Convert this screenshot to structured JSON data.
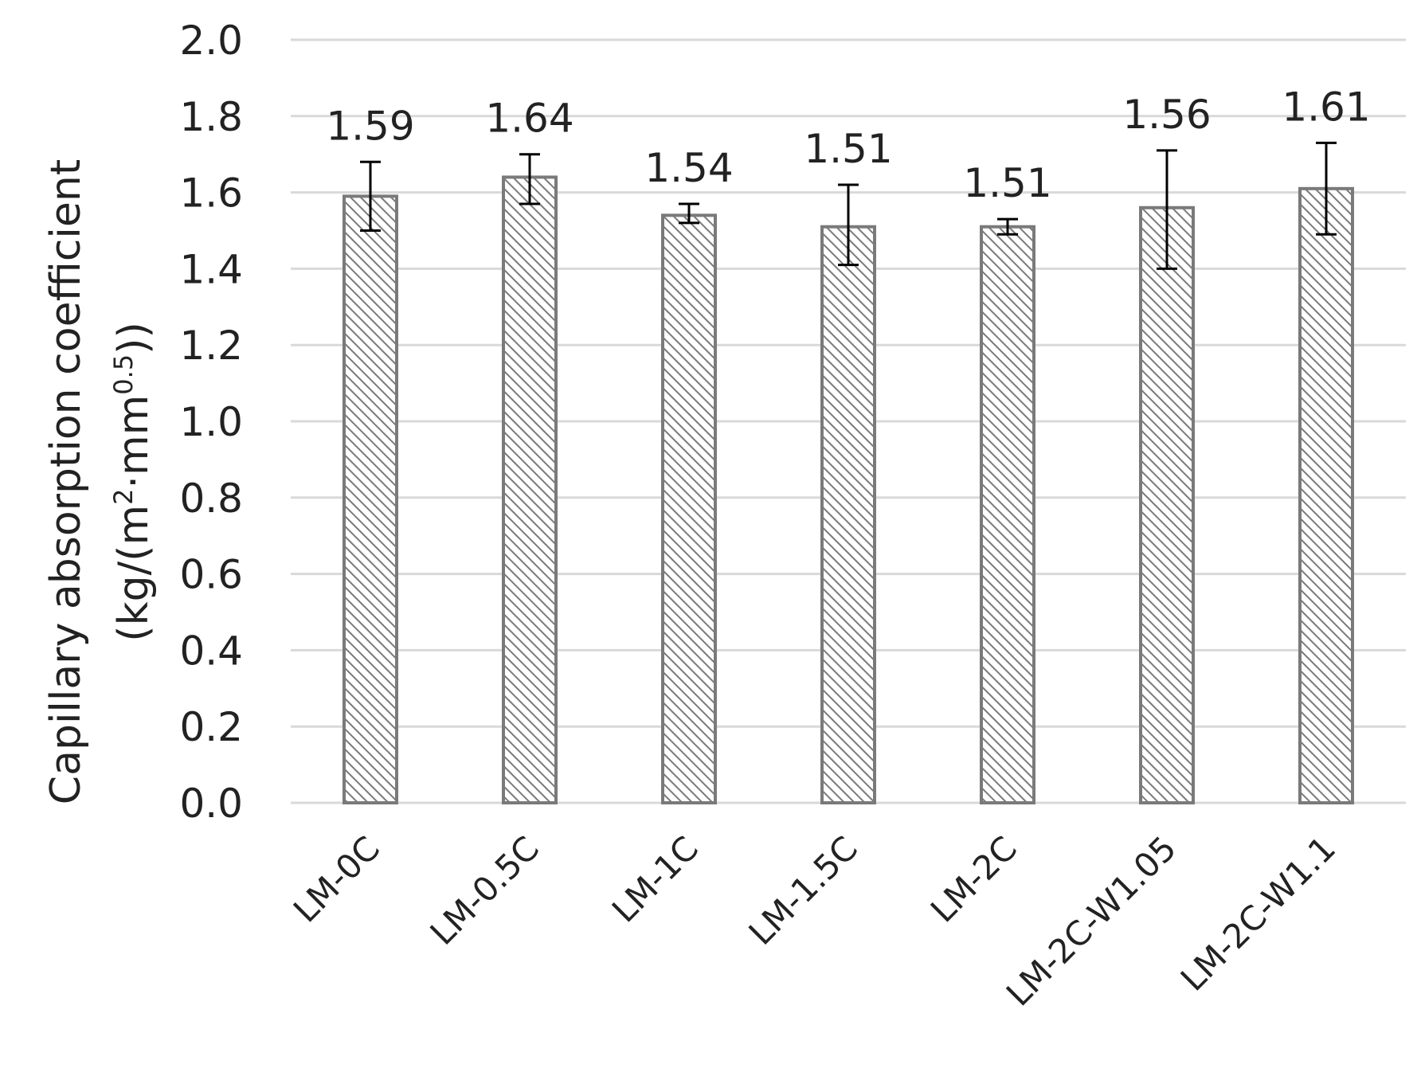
{
  "chart_data": {
    "type": "bar",
    "title": "",
    "xlabel": "",
    "ylabel": {
      "line1": "Capillary absorption coefficient",
      "line2_before_sup1": "(kg/(m",
      "sup1": "2",
      "line2_mid": "·mm",
      "sup2": "0.5",
      "line2_after": "))"
    },
    "categories": [
      "LM-0C",
      "LM-0.5C",
      "LM-1C",
      "LM-1.5C",
      "LM-2C",
      "LM-2C-W1.05",
      "LM-2C-W1.1"
    ],
    "values": [
      1.59,
      1.64,
      1.54,
      1.51,
      1.51,
      1.56,
      1.61
    ],
    "data_labels": [
      "1.59",
      "1.64",
      "1.54",
      "1.51",
      "1.51",
      "1.56",
      "1.61"
    ],
    "error_bars": [
      {
        "low": 1.5,
        "high": 1.68
      },
      {
        "low": 1.57,
        "high": 1.7
      },
      {
        "low": 1.52,
        "high": 1.57
      },
      {
        "low": 1.41,
        "high": 1.62
      },
      {
        "low": 1.49,
        "high": 1.53
      },
      {
        "low": 1.4,
        "high": 1.71
      },
      {
        "low": 1.49,
        "high": 1.73
      }
    ],
    "ylim": [
      0,
      2.0
    ],
    "yticks": [
      "0.0",
      "0.2",
      "0.4",
      "0.6",
      "0.8",
      "1.0",
      "1.2",
      "1.4",
      "1.6",
      "1.8",
      "2.0"
    ],
    "grid": true,
    "legend": "none",
    "colors": {
      "bar_stroke": "#7a7a7a",
      "hatch": "#7a7a7a",
      "grid": "#d9d9d9",
      "error_bar": "#000000"
    }
  }
}
